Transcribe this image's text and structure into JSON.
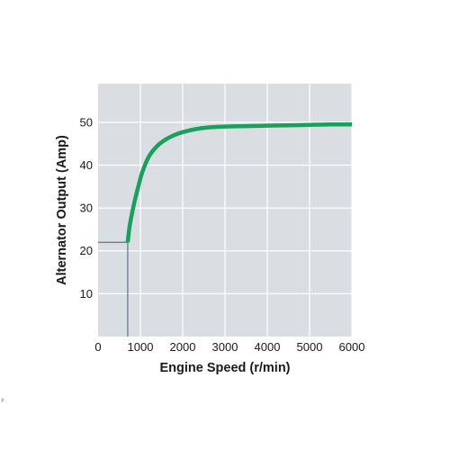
{
  "chart_data": {
    "type": "line",
    "xlabel": "Engine Speed (r/min)",
    "ylabel": "Alternator Output (Amp)",
    "xlim": [
      0,
      6000
    ],
    "ylim": [
      0,
      59
    ],
    "xticks": [
      0,
      1000,
      2000,
      3000,
      4000,
      5000,
      6000
    ],
    "yticks": [
      10,
      20,
      30,
      40,
      50
    ],
    "x_tick_labels": [
      "0",
      "1000",
      "2000",
      "3000",
      "4000",
      "5000",
      "6000"
    ],
    "y_tick_labels": [
      "10",
      "20",
      "30",
      "40",
      "50"
    ],
    "grid": true,
    "legend": "none",
    "series": [
      {
        "color": "#1aa05a",
        "x": [
          700,
          750,
          850,
          950,
          1050,
          1200,
          1400,
          1600,
          1800,
          2000,
          2300,
          2600,
          3000,
          3500,
          4000,
          4500,
          5000,
          5500,
          6000
        ],
        "y": [
          22,
          26,
          31,
          35,
          38.5,
          42,
          44.5,
          46,
          47,
          47.7,
          48.4,
          48.8,
          49,
          49.1,
          49.2,
          49.3,
          49.4,
          49.5,
          49.5
        ]
      }
    ],
    "cut_in_marker": {
      "x": 700,
      "y": 22
    },
    "colors": {
      "plot_background": "#d9dee3",
      "grid": "#ffffff",
      "line": "#1aa05a",
      "marker_line": "#5d7383"
    }
  }
}
